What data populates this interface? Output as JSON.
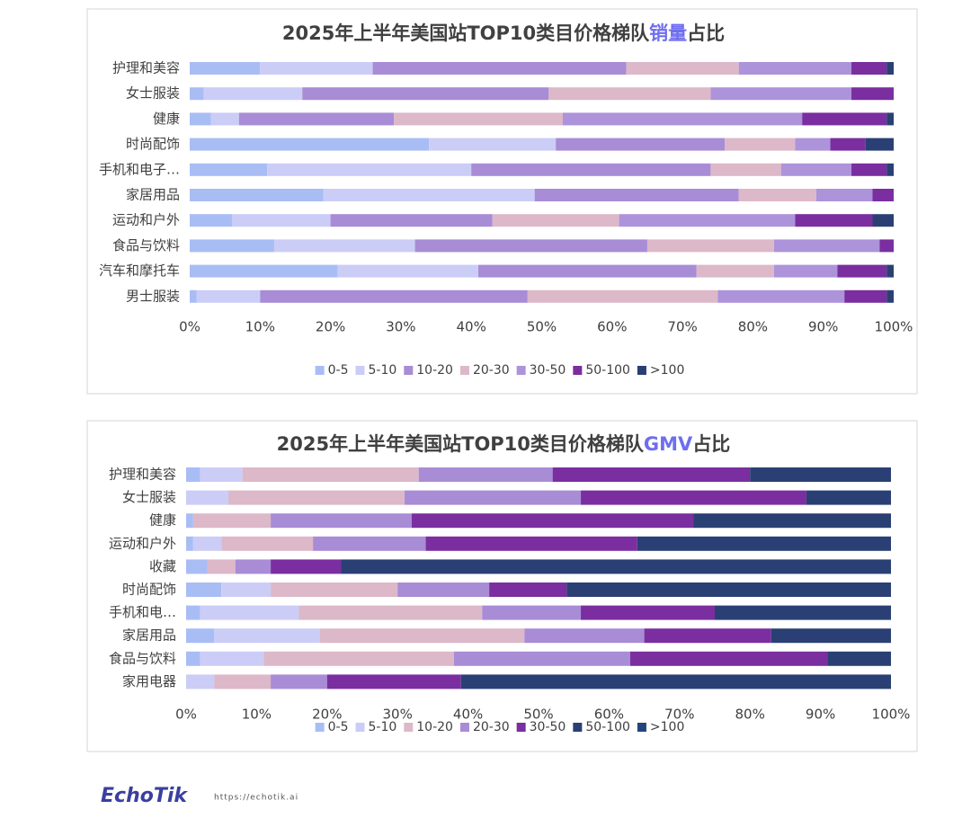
{
  "chart_data": [
    {
      "type": "stacked_barh",
      "title": [
        "2025年上半年美国站TOP10类目价格梯队",
        "销量",
        "占比"
      ],
      "title_highlight_color": "#6f6ef0",
      "categories": [
        "护理和美容",
        "女士服装",
        "健康",
        "时尚配饰",
        "手机和电子…",
        "家居用品",
        "运动和户外",
        "食品与饮料",
        "汽车和摩托车",
        "男士服装"
      ],
      "series": [
        {
          "name": "0-5",
          "color": "#a9bdf5",
          "values": [
            10,
            2,
            3,
            34,
            11,
            19,
            6,
            12,
            21,
            1
          ]
        },
        {
          "name": "5-10",
          "color": "#cbcdf7",
          "values": [
            16,
            14,
            4,
            18,
            29,
            30,
            14,
            20,
            20,
            9
          ]
        },
        {
          "name": "10-20",
          "color": "#a88cd6",
          "values": [
            36,
            35,
            22,
            24,
            34,
            29,
            23,
            33,
            31,
            38
          ]
        },
        {
          "name": "20-30",
          "color": "#dcb8c9",
          "values": [
            16,
            23,
            24,
            10,
            10,
            11,
            18,
            18,
            11,
            27
          ]
        },
        {
          "name": "30-50",
          "color": "#ad93da",
          "values": [
            16,
            20,
            34,
            5,
            10,
            8,
            25,
            15,
            9,
            18
          ]
        },
        {
          "name": "50-100",
          "color": "#7a2ea0",
          "values": [
            5,
            6,
            12,
            5,
            5,
            3,
            11,
            2,
            7,
            6
          ]
        },
        {
          "name": ">100",
          "color": "#2a4074",
          "values": [
            1,
            0,
            1,
            4,
            1,
            0,
            3,
            0,
            1,
            1
          ]
        }
      ],
      "xlim": [
        0,
        100
      ],
      "xticks": [
        {
          "value": 0,
          "label": "0%"
        },
        {
          "value": 10,
          "label": "10%"
        },
        {
          "value": 20,
          "label": "20%"
        },
        {
          "value": 30,
          "label": "30%"
        },
        {
          "value": 40,
          "label": "40%"
        },
        {
          "value": 50,
          "label": "50%"
        },
        {
          "value": 60,
          "label": "60%"
        },
        {
          "value": 70,
          "label": "70%"
        },
        {
          "value": 80,
          "label": "80%"
        },
        {
          "value": 90,
          "label": "90%"
        },
        {
          "value": 100,
          "label": "100%"
        }
      ],
      "legend": "bottom"
    },
    {
      "type": "stacked_barh",
      "title": [
        "2025年上半年美国站TOP10类目价格梯队",
        "GMV",
        "占比"
      ],
      "title_highlight_color": "#6f6ef0",
      "categories": [
        "护理和美容",
        "女士服装",
        "健康",
        "运动和户外",
        "收藏",
        "时尚配饰",
        "手机和电…",
        "家居用品",
        "食品与饮料",
        "家用电器"
      ],
      "series": [
        {
          "name": "0-5",
          "color": "#a9bdf5",
          "values": [
            2,
            0,
            1,
            1,
            3,
            5,
            2,
            4,
            2,
            0
          ]
        },
        {
          "name": "5-10",
          "color": "#cbcdf7",
          "values": [
            6,
            6,
            0,
            4,
            0,
            7,
            14,
            15,
            9,
            4
          ]
        },
        {
          "name": "10-20",
          "color": "#dcb8c9",
          "values": [
            25,
            25,
            11,
            13,
            4,
            18,
            26,
            29,
            27,
            8
          ]
        },
        {
          "name": "20-30",
          "color": "#a88cd6",
          "values": [
            19,
            25,
            20,
            16,
            5,
            13,
            14,
            17,
            25,
            8
          ]
        },
        {
          "name": "30-50",
          "color": "#7a2ea0",
          "values": [
            28,
            32,
            40,
            30,
            10,
            11,
            19,
            18,
            28,
            19
          ]
        },
        {
          "name": "50-100",
          "color": "#2a4074",
          "values": [
            20,
            12,
            28,
            36,
            78,
            46,
            25,
            17,
            9,
            61
          ]
        },
        {
          "name": ">100",
          "color": "#24447c",
          "values": [
            0,
            0,
            0,
            0,
            0,
            0,
            0,
            0,
            0,
            0
          ]
        }
      ],
      "xlim": [
        0,
        100
      ],
      "xticks": [
        {
          "value": 0,
          "label": "0%"
        },
        {
          "value": 10,
          "label": "10%"
        },
        {
          "value": 20,
          "label": "20%"
        },
        {
          "value": 30,
          "label": "30%"
        },
        {
          "value": 40,
          "label": "40%"
        },
        {
          "value": 50,
          "label": "50%"
        },
        {
          "value": 60,
          "label": "60%"
        },
        {
          "value": 70,
          "label": "70%"
        },
        {
          "value": 80,
          "label": "80%"
        },
        {
          "value": 90,
          "label": "90%"
        },
        {
          "value": 100,
          "label": "100%"
        }
      ],
      "legend": "bottom"
    }
  ],
  "footer": {
    "brand": "EchoTik",
    "url": "https://echotik.ai"
  }
}
